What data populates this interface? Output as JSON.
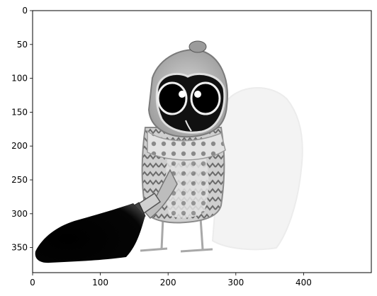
{
  "figure": {
    "image_description_name": "owl-with-flashlight",
    "x_axis": {
      "range": [
        0,
        500
      ],
      "ticks": [
        0,
        100,
        200,
        300,
        400
      ],
      "tick_labels": [
        "0",
        "100",
        "200",
        "300",
        "400"
      ]
    },
    "y_axis": {
      "range": [
        0,
        387
      ],
      "inverted": true,
      "ticks": [
        0,
        50,
        100,
        150,
        200,
        250,
        300,
        350
      ],
      "tick_labels": [
        "0",
        "50",
        "100",
        "150",
        "200",
        "250",
        "300",
        "350"
      ]
    },
    "colors": {
      "background": "#ffffff",
      "ink": "#000000",
      "frame": "#000000"
    }
  }
}
